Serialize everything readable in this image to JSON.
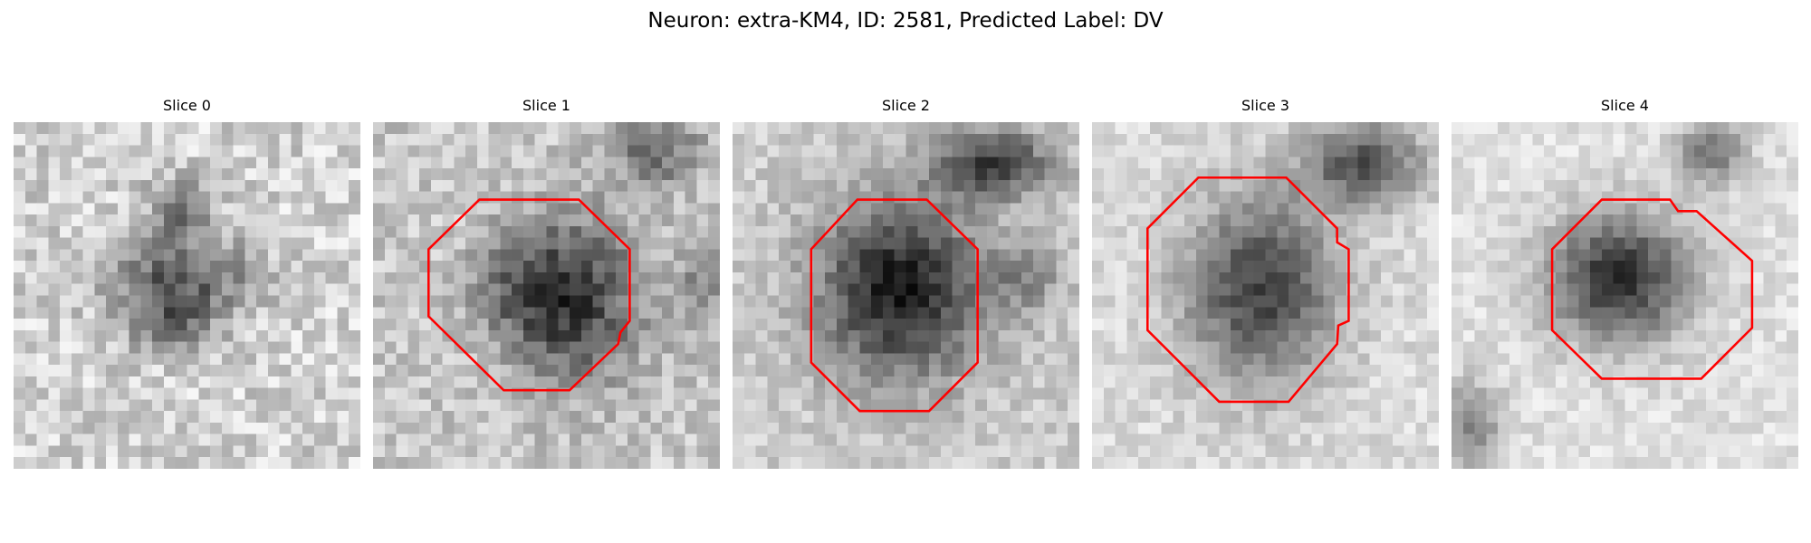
{
  "title": "Neuron: extra-KM4, ID: 2581, Predicted Label: DV",
  "outline_color": "#ff0000",
  "panels": [
    {
      "label": "Slice 0",
      "has_outline": false
    },
    {
      "label": "Slice 1",
      "has_outline": true
    },
    {
      "label": "Slice 2",
      "has_outline": true
    },
    {
      "label": "Slice 3",
      "has_outline": true
    },
    {
      "label": "Slice 4",
      "has_outline": true
    }
  ]
}
